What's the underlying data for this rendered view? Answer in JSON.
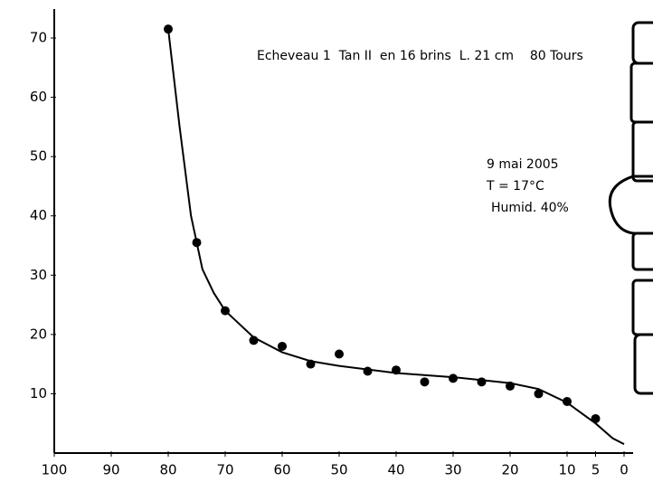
{
  "chart_data": {
    "type": "scatter",
    "annotations": [
      "Echeveau 1  Tan II  en 16 brins  L. 21 cm    80 Tours",
      "9 mai 2005",
      "T = 17°C",
      "Humid. 40%"
    ],
    "x": [
      80,
      75,
      70,
      65,
      60,
      55,
      50,
      45,
      40,
      35,
      30,
      25,
      20,
      15,
      10,
      5
    ],
    "values": [
      71.5,
      35.5,
      24,
      19,
      18,
      15,
      16.7,
      13.8,
      14,
      12,
      12.6,
      12,
      11.3,
      10,
      8.7,
      5.8
    ],
    "curve": {
      "x": [
        80,
        78,
        76,
        74,
        72,
        70,
        65,
        60,
        55,
        50,
        40,
        30,
        20,
        15,
        10,
        5,
        2,
        0
      ],
      "values": [
        71.5,
        55,
        40,
        31,
        27,
        24,
        19.5,
        17,
        15.5,
        14.7,
        13.5,
        12.8,
        11.8,
        10.8,
        8.5,
        5,
        2.5,
        1.5
      ]
    },
    "color": "#000000",
    "xlim": [
      100,
      0
    ],
    "xticks": [
      100,
      90,
      80,
      70,
      60,
      50,
      40,
      30,
      20,
      10,
      5,
      0
    ],
    "ylim": [
      0,
      70
    ],
    "yticks": [
      10,
      20,
      30,
      40,
      50,
      60,
      70
    ]
  }
}
